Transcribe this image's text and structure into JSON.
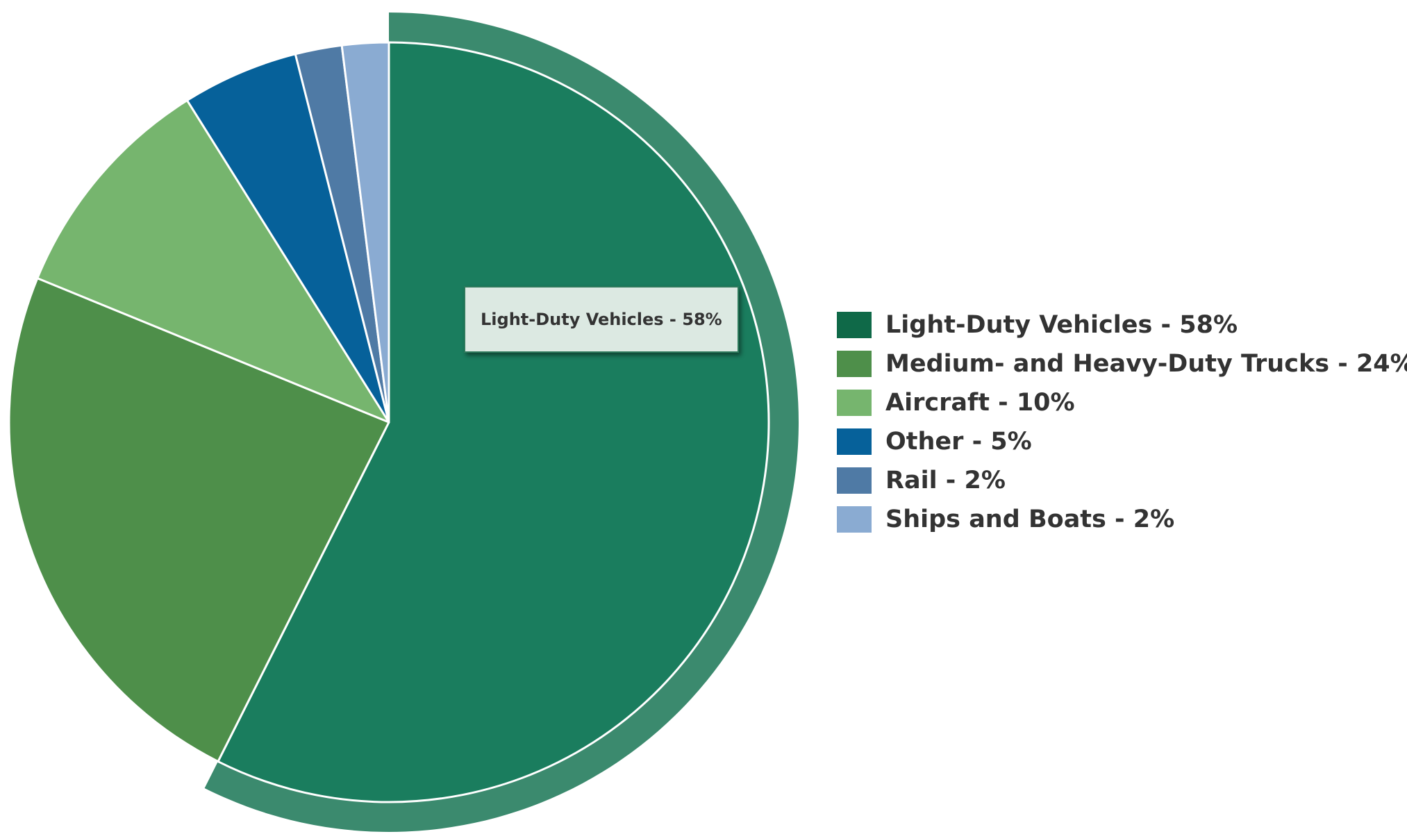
{
  "chart_data": {
    "type": "pie",
    "categories": [
      "Light-Duty Vehicles",
      "Medium- and Heavy-Duty Trucks",
      "Aircraft",
      "Other",
      "Rail",
      "Ships and Boats"
    ],
    "values": [
      58,
      24,
      10,
      5,
      2,
      2
    ],
    "colors": [
      "#1a7d5e",
      "#4e8f4a",
      "#76b56e",
      "#06619a",
      "#4f7aa5",
      "#8aabd2"
    ],
    "legend_swatch_colors": [
      "#0f6948",
      "#4e8f4a",
      "#76b56e",
      "#06619a",
      "#4f7aa5",
      "#8aabd2"
    ],
    "legend_labels": [
      "Light-Duty Vehicles - 58%",
      "Medium- and Heavy-Duty Trucks - 24%",
      "Aircraft - 10%",
      "Other - 5%",
      "Rail - 2%",
      "Ships and Boats - 2%"
    ],
    "legend_position": "right",
    "highlighted_slice": "Light-Duty Vehicles",
    "highlight_color": "#3b8a6e",
    "tooltip": "Light-Duty Vehicles - 58%",
    "start_angle": "12 o'clock",
    "direction": "clockwise"
  }
}
